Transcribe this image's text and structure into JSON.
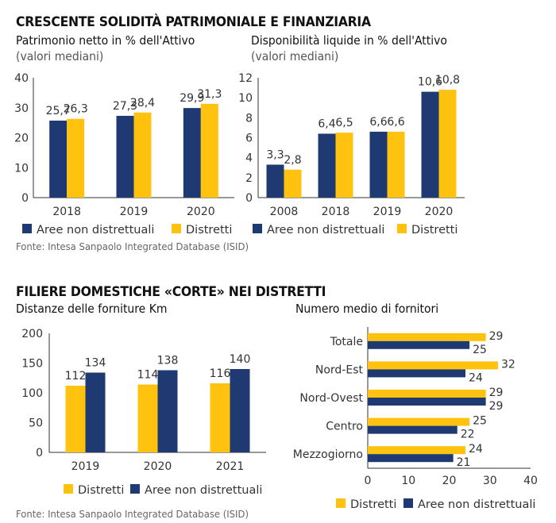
{
  "sections": [
    {
      "title": "CRESCENTE SOLIDITÀ PATRIMONIALE E FINANZIARIA",
      "source": "Fonte: Intesa Sanpaolo Integrated Database (ISID)"
    },
    {
      "title": "FILIERE DOMESTICHE «CORTE» NEI DISTRETTI",
      "source": "Fonte: Intesa Sanpaolo Integrated Database (ISID)"
    }
  ],
  "colors": {
    "distretti": "#FFC20E",
    "aree_non_distrettuali": "#1F3A72"
  },
  "chart_data": [
    {
      "type": "bar",
      "title": "Patrimonio netto in % dell'Attivo",
      "subtitle": "(valori mediani)",
      "categories": [
        "2018",
        "2019",
        "2020"
      ],
      "series": [
        {
          "name": "Aree non distrettuali",
          "values": [
            25.7,
            27.3,
            29.9
          ],
          "labels": [
            "25,7",
            "27,3",
            "29,9"
          ]
        },
        {
          "name": "Distretti",
          "values": [
            26.3,
            28.4,
            31.3
          ],
          "labels": [
            "26,3",
            "28,4",
            "31,3"
          ]
        }
      ],
      "yticks": [
        "40",
        "30",
        "20",
        "10",
        "0"
      ],
      "ylim": [
        0,
        40
      ],
      "legend": [
        "Aree non distrettuali",
        "Distretti"
      ],
      "grid": false
    },
    {
      "type": "bar",
      "title": "Disponibilità liquide in % dell'Attivo",
      "subtitle": "(valori mediani)",
      "categories": [
        "2008",
        "2018",
        "2019",
        "2020"
      ],
      "series": [
        {
          "name": "Aree non distrettuali",
          "values": [
            3.3,
            6.4,
            6.6,
            10.6
          ],
          "labels": [
            "3,3",
            "6,4",
            "6,6",
            "10,6"
          ]
        },
        {
          "name": "Distretti",
          "values": [
            2.8,
            6.5,
            6.6,
            10.8
          ],
          "labels": [
            "2,8",
            "6,5",
            "6,6",
            "10,8"
          ]
        }
      ],
      "yticks": [
        "12",
        "10",
        "8",
        "6",
        "4",
        "2",
        "0"
      ],
      "ylim": [
        0,
        12
      ],
      "legend": [
        "Aree non distrettuali",
        "Distretti"
      ],
      "grid": false
    },
    {
      "type": "bar",
      "title": "Distanze delle forniture Km",
      "categories": [
        "2019",
        "2020",
        "2021"
      ],
      "series": [
        {
          "name": "Distretti",
          "values": [
            112,
            114,
            116
          ],
          "labels": [
            "112",
            "114",
            "116"
          ]
        },
        {
          "name": "Aree non distrettuali",
          "values": [
            134,
            138,
            140
          ],
          "labels": [
            "134",
            "138",
            "140"
          ]
        }
      ],
      "yticks": [
        "200",
        "150",
        "100",
        "50",
        "0"
      ],
      "ylim": [
        0,
        200
      ],
      "legend": [
        "Distretti",
        "Aree non distrettuali"
      ],
      "grid": false
    },
    {
      "type": "bar",
      "orientation": "horizontal",
      "title": "Numero medio di fornitori",
      "categories": [
        "Totale",
        "Nord-Est",
        "Nord-Ovest",
        "Centro",
        "Mezzogiorno"
      ],
      "series": [
        {
          "name": "Distretti",
          "values": [
            29,
            32,
            29,
            25,
            24
          ],
          "labels": [
            "29",
            "32",
            "29",
            "25",
            "24"
          ]
        },
        {
          "name": "Aree non distrettuali",
          "values": [
            25,
            24,
            29,
            22,
            21
          ],
          "labels": [
            "25",
            "24",
            "29",
            "22",
            "21"
          ]
        }
      ],
      "xticks": [
        "0",
        "10",
        "20",
        "30",
        "40"
      ],
      "xlim": [
        0,
        40
      ],
      "legend": [
        "Distretti",
        "Aree non distrettuali"
      ],
      "grid": false
    }
  ]
}
